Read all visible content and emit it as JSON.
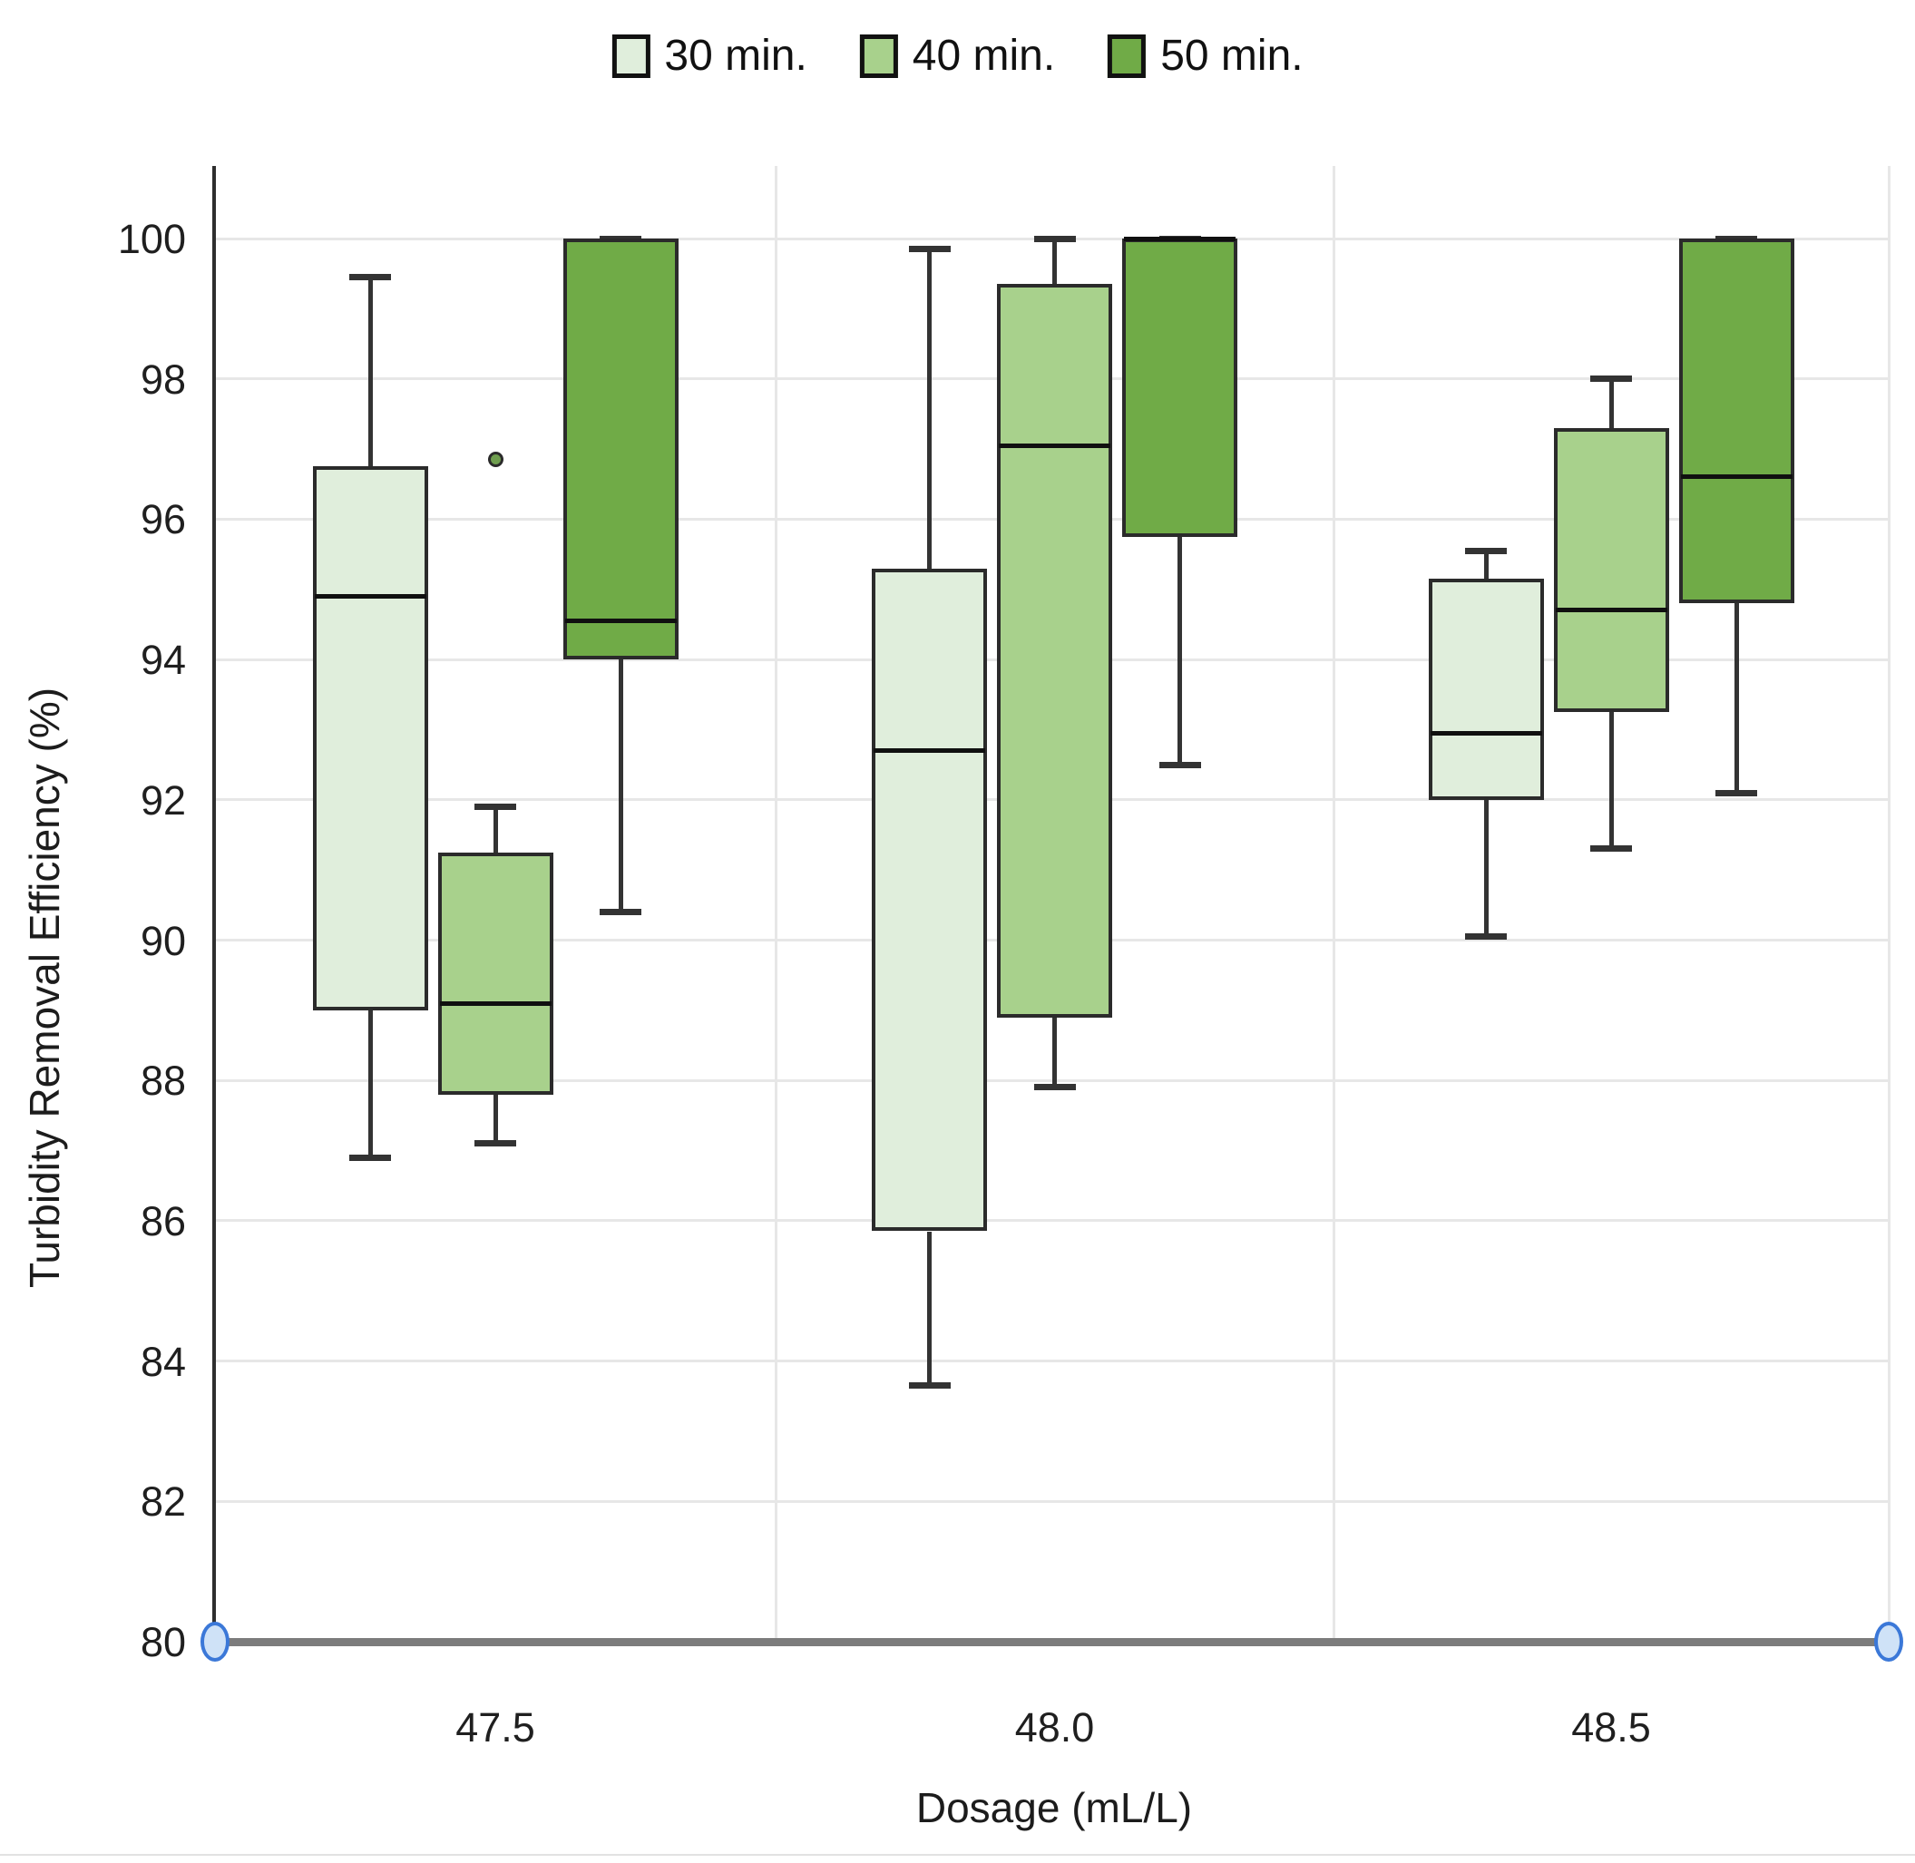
{
  "legend": {
    "items": [
      {
        "label": "30 min.",
        "color": "#e0eedc"
      },
      {
        "label": "40 min.",
        "color": "#a8d18c"
      },
      {
        "label": "50 min.",
        "color": "#70ab47"
      }
    ]
  },
  "axes": {
    "y_title": "Turbidity Removal Efficiency (%)",
    "x_title": "Dosage (mL/L)",
    "y_ticks": [
      100,
      98,
      96,
      94,
      92,
      90,
      88,
      86,
      84,
      82,
      80
    ],
    "x_ticks": [
      "47.5",
      "48.0",
      "48.5"
    ]
  },
  "chart_data": {
    "type": "boxplot",
    "title": "",
    "categories": [
      "47.5",
      "48.0",
      "48.5"
    ],
    "xlabel": "Dosage (mL/L)",
    "ylabel": "Turbidity Removal Efficiency (%)",
    "ylim": [
      80,
      101
    ],
    "grid": true,
    "legend_position": "top",
    "series": [
      {
        "name": "30 min.",
        "color": "#e0eedc",
        "boxes": [
          {
            "category": "47.5",
            "min": 86.9,
            "q1": 89.0,
            "median": 94.9,
            "q3": 96.75,
            "max": 99.45
          },
          {
            "category": "48.0",
            "min": 83.65,
            "q1": 85.85,
            "median": 92.7,
            "q3": 95.3,
            "max": 99.85
          },
          {
            "category": "48.5",
            "min": 90.05,
            "q1": 92.0,
            "median": 92.95,
            "q3": 95.15,
            "max": 95.55
          }
        ],
        "outliers": []
      },
      {
        "name": "40 min.",
        "color": "#a8d18c",
        "boxes": [
          {
            "category": "47.5",
            "min": 87.1,
            "q1": 87.8,
            "median": 89.1,
            "q3": 91.25,
            "max": 91.9
          },
          {
            "category": "48.0",
            "min": 87.9,
            "q1": 88.9,
            "median": 97.05,
            "q3": 99.35,
            "max": 100.0
          },
          {
            "category": "48.5",
            "min": 91.3,
            "q1": 93.25,
            "median": 94.7,
            "q3": 97.3,
            "max": 98.0
          }
        ],
        "outliers": [
          {
            "category": "47.5",
            "value": 96.85
          }
        ]
      },
      {
        "name": "50 min.",
        "color": "#70ab47",
        "boxes": [
          {
            "category": "47.5",
            "min": 90.4,
            "q1": 94.0,
            "median": 94.55,
            "q3": 100.0,
            "max": 100.0
          },
          {
            "category": "48.0",
            "min": 92.5,
            "q1": 95.75,
            "median": 100.0,
            "q3": 100.0,
            "max": 100.0
          },
          {
            "category": "48.5",
            "min": 92.1,
            "q1": 94.8,
            "median": 96.6,
            "q3": 100.0,
            "max": 100.0
          }
        ],
        "outliers": []
      }
    ],
    "style_colors": {
      "box_border": "#2b2b2b",
      "whisker": "#333333",
      "gridline": "#e7e7e7",
      "axis_line": "#2f2f2f",
      "baseline": "#7c7c7c",
      "handle_border": "#3b78d8",
      "handle_fill": "#cfe2f7"
    }
  }
}
